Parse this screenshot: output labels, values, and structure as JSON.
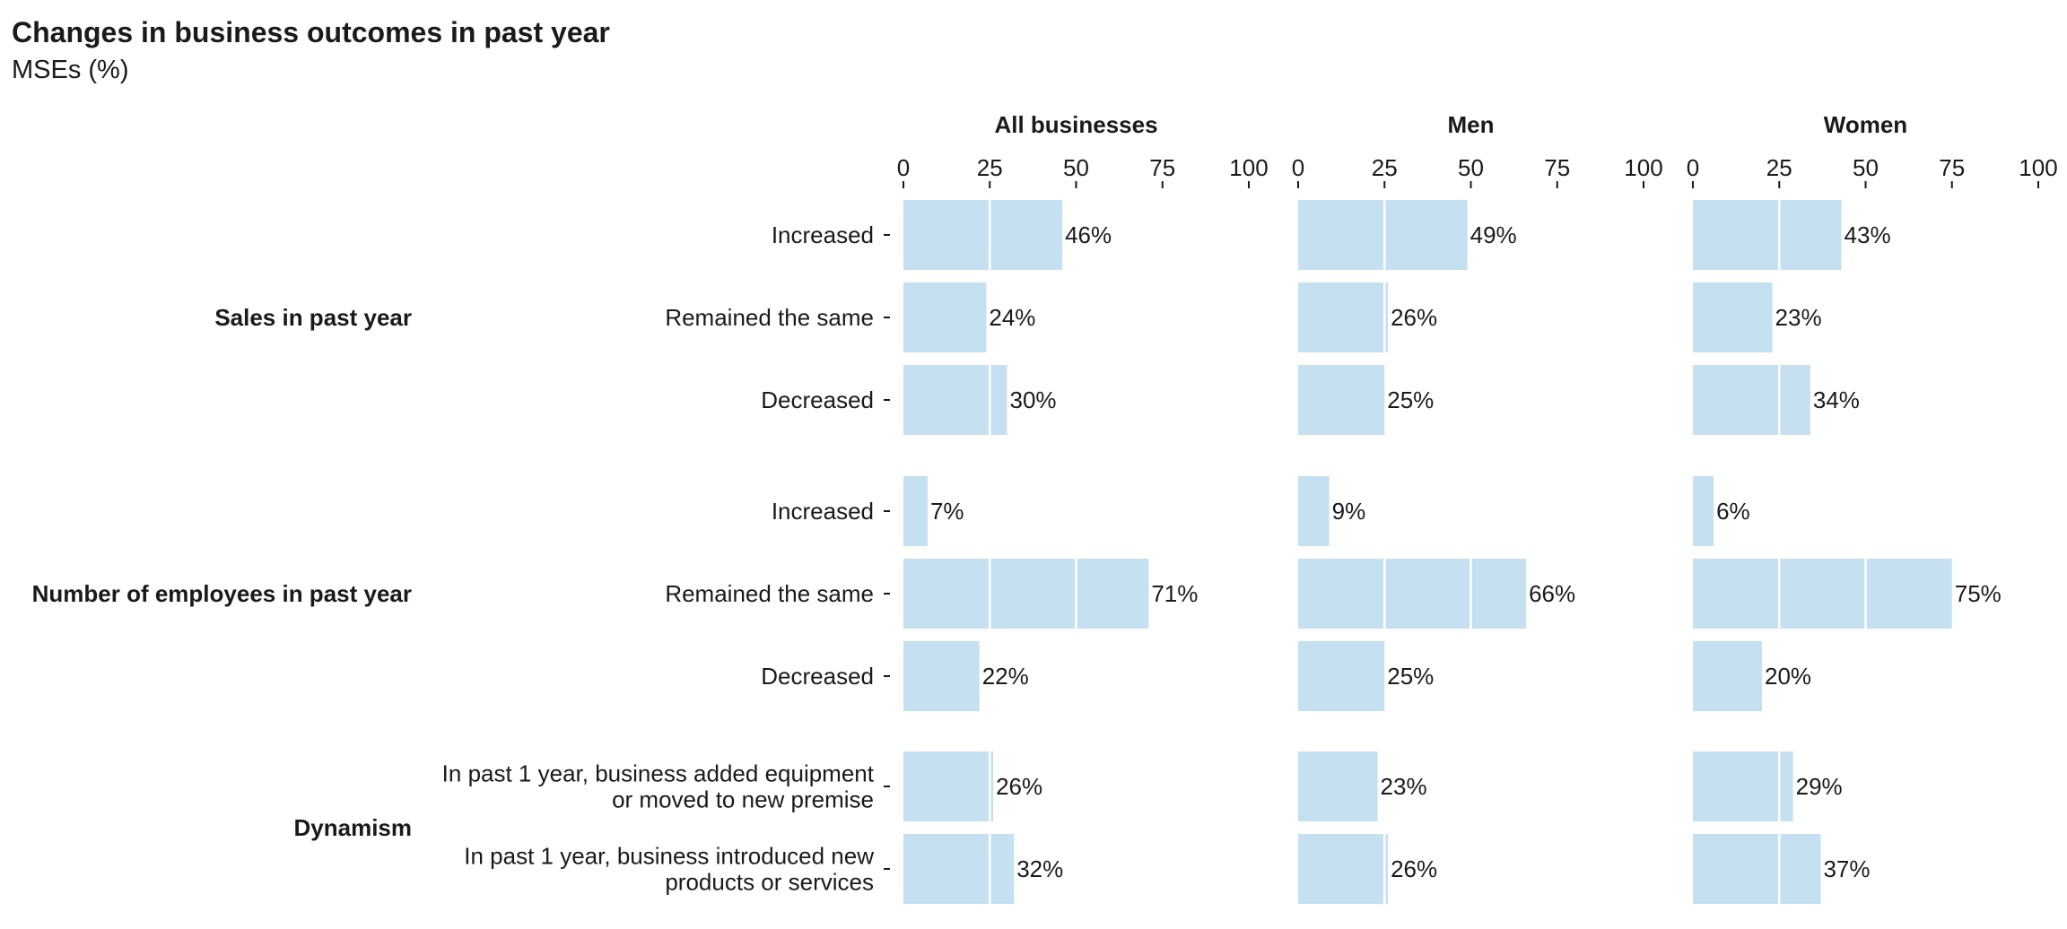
{
  "title": "Changes in business outcomes in past year",
  "subtitle": "MSEs (%)",
  "colors": {
    "bar": "#c5e0f0",
    "text": "#1a1a1a",
    "gridline": "#ffffff"
  },
  "chart_data": {
    "type": "bar",
    "orientation": "horizontal",
    "title": "Changes in business outcomes in past year",
    "subtitle": "MSEs (%)",
    "xlim": [
      0,
      100
    ],
    "xticks": [
      0,
      25,
      50,
      75,
      100
    ],
    "value_suffix": "%",
    "panels": [
      "All businesses",
      "Men",
      "Women"
    ],
    "groups": [
      {
        "name": "Sales in past year",
        "categories": [
          "Increased",
          "Remained the same",
          "Decreased"
        ],
        "values": {
          "All businesses": [
            46,
            24,
            30
          ],
          "Men": [
            49,
            26,
            25
          ],
          "Women": [
            43,
            23,
            34
          ]
        }
      },
      {
        "name": "Number of employees in past year",
        "categories": [
          "Increased",
          "Remained the same",
          "Decreased"
        ],
        "values": {
          "All businesses": [
            7,
            71,
            22
          ],
          "Men": [
            9,
            66,
            25
          ],
          "Women": [
            6,
            75,
            20
          ]
        }
      },
      {
        "name": "Dynamism",
        "categories": [
          "In past 1 year, business added equipment\nor moved to new premise",
          "In past 1 year, business introduced new\nproducts or services"
        ],
        "values": {
          "All businesses": [
            26,
            32
          ],
          "Men": [
            23,
            26
          ],
          "Women": [
            29,
            37
          ]
        }
      }
    ]
  }
}
